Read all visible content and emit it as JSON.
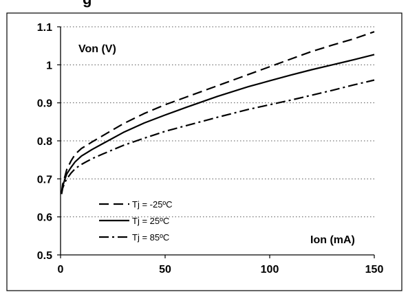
{
  "chart_data": {
    "type": "line",
    "title": "",
    "partial_heading": "g",
    "xlabel": "Ion (mA)",
    "ylabel": "Von (V)",
    "xlim": [
      0,
      150
    ],
    "ylim": [
      0.5,
      1.1
    ],
    "x_ticks": [
      "0",
      "50",
      "100",
      "150"
    ],
    "y_ticks": [
      "0.5",
      "0.6",
      "0.7",
      "0.8",
      "0.9",
      "1",
      "1.1"
    ],
    "grid": "horizontal dotted",
    "legend_position": "bottom-left",
    "series": [
      {
        "name": "Tj = -25ºC",
        "style": "dashed",
        "color": "#000000",
        "x": [
          0.5,
          1,
          2,
          3,
          5,
          7,
          10,
          15,
          20,
          30,
          40,
          50,
          60,
          75,
          90,
          100,
          110,
          120,
          130,
          140,
          150
        ],
        "y": [
          0.665,
          0.685,
          0.705,
          0.725,
          0.747,
          0.765,
          0.78,
          0.797,
          0.813,
          0.845,
          0.872,
          0.895,
          0.915,
          0.945,
          0.975,
          0.995,
          1.015,
          1.035,
          1.052,
          1.068,
          1.087
        ]
      },
      {
        "name": "Tj = 25ºC",
        "style": "solid",
        "color": "#000000",
        "x": [
          0.5,
          1,
          2,
          3,
          5,
          7,
          10,
          15,
          20,
          30,
          40,
          50,
          60,
          75,
          90,
          100,
          110,
          120,
          130,
          140,
          150
        ],
        "y": [
          0.662,
          0.68,
          0.698,
          0.713,
          0.73,
          0.745,
          0.76,
          0.777,
          0.792,
          0.822,
          0.847,
          0.868,
          0.888,
          0.917,
          0.943,
          0.958,
          0.973,
          0.987,
          1.0,
          1.013,
          1.027
        ]
      },
      {
        "name": "Tj = 85ºC",
        "style": "dash-dot",
        "color": "#000000",
        "x": [
          0.5,
          1,
          2,
          3,
          5,
          7,
          10,
          15,
          20,
          30,
          40,
          50,
          60,
          75,
          90,
          100,
          110,
          120,
          130,
          140,
          150
        ],
        "y": [
          0.66,
          0.675,
          0.69,
          0.7,
          0.715,
          0.727,
          0.738,
          0.753,
          0.765,
          0.788,
          0.807,
          0.825,
          0.84,
          0.862,
          0.883,
          0.895,
          0.907,
          0.92,
          0.933,
          0.947,
          0.96
        ]
      }
    ]
  }
}
